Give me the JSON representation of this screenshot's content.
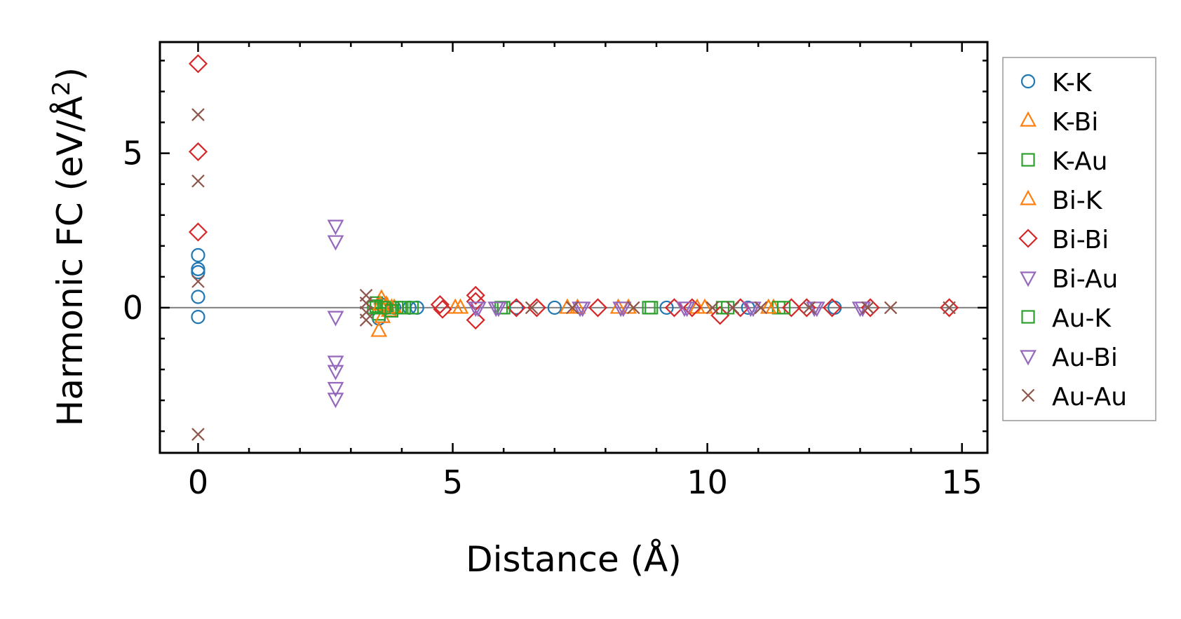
{
  "chart_data": {
    "type": "scatter",
    "xlabel": "Distance (Å)",
    "ylabel_main": "Harmonic FC (eV/Å",
    "ylabel_sup": "2",
    "ylabel_close": ")",
    "xlim": [
      -0.75,
      15.5
    ],
    "ylim": [
      -4.7,
      8.6
    ],
    "xticks": [
      0,
      5,
      10,
      15
    ],
    "xtick_labels": [
      "0",
      "5",
      "10",
      "15"
    ],
    "yticks": [
      0,
      5
    ],
    "ytick_labels": [
      "0",
      "5"
    ],
    "x_minor_step": 1,
    "y_minor_step": 1,
    "hline_y": 0,
    "legend_position": "outside-right",
    "series": [
      {
        "name": "K-K",
        "marker": "circle",
        "color": "#1f77b4",
        "points": [
          [
            0,
            1.7
          ],
          [
            0,
            1.25
          ],
          [
            0,
            1.15
          ],
          [
            0,
            0.35
          ],
          [
            0,
            -0.3
          ],
          [
            3.55,
            -0.35
          ],
          [
            3.6,
            0.1
          ],
          [
            3.7,
            0.0
          ],
          [
            3.85,
            0.0
          ],
          [
            4.15,
            0.0
          ],
          [
            4.3,
            0.0
          ],
          [
            6.25,
            0.0
          ],
          [
            7.0,
            0.0
          ],
          [
            9.2,
            0.0
          ],
          [
            10.8,
            0.0
          ],
          [
            12.5,
            0.0
          ]
        ]
      },
      {
        "name": "K-Bi",
        "marker": "triangle-up",
        "color": "#ff7f0e",
        "points": [
          [
            3.55,
            -0.75
          ],
          [
            3.6,
            0.3
          ],
          [
            3.7,
            0.1
          ],
          [
            3.75,
            -0.1
          ],
          [
            3.85,
            0.0
          ],
          [
            5.05,
            0.0
          ],
          [
            7.25,
            0.0
          ],
          [
            8.45,
            0.0
          ],
          [
            9.95,
            0.0
          ],
          [
            11.3,
            0.0
          ]
        ]
      },
      {
        "name": "K-Au",
        "marker": "square",
        "color": "#2ca02c",
        "points": [
          [
            3.45,
            0.0
          ],
          [
            3.5,
            0.15
          ],
          [
            3.55,
            -0.2
          ],
          [
            3.6,
            0.0
          ],
          [
            3.7,
            0.0
          ],
          [
            3.9,
            0.0
          ],
          [
            4.05,
            0.0
          ],
          [
            4.2,
            0.0
          ],
          [
            5.95,
            0.0
          ],
          [
            8.85,
            0.0
          ],
          [
            10.3,
            0.0
          ],
          [
            11.4,
            0.0
          ]
        ]
      },
      {
        "name": "Bi-K",
        "marker": "triangle-up",
        "color": "#ff7f0e",
        "points": [
          [
            3.58,
            0.1
          ],
          [
            3.62,
            -0.3
          ],
          [
            3.8,
            0.0
          ],
          [
            5.15,
            0.0
          ],
          [
            7.45,
            0.0
          ],
          [
            8.25,
            0.0
          ],
          [
            9.8,
            0.0
          ],
          [
            11.2,
            0.0
          ]
        ]
      },
      {
        "name": "Bi-Bi",
        "marker": "diamond",
        "color": "#d62728",
        "points": [
          [
            0,
            7.9
          ],
          [
            0,
            5.05
          ],
          [
            0,
            2.45
          ],
          [
            4.75,
            0.1
          ],
          [
            4.8,
            -0.05
          ],
          [
            5.45,
            0.4
          ],
          [
            5.45,
            0.2
          ],
          [
            5.45,
            -0.4
          ],
          [
            6.25,
            0.0
          ],
          [
            6.65,
            0.0
          ],
          [
            7.85,
            0.0
          ],
          [
            9.35,
            0.0
          ],
          [
            9.7,
            0.0
          ],
          [
            10.25,
            -0.25
          ],
          [
            10.65,
            0.0
          ],
          [
            11.65,
            0.0
          ],
          [
            11.95,
            0.0
          ],
          [
            12.45,
            0.0
          ],
          [
            13.2,
            0.0
          ],
          [
            14.75,
            0.0
          ]
        ]
      },
      {
        "name": "Bi-Au",
        "marker": "triangle-down",
        "color": "#9467bd",
        "points": [
          [
            2.7,
            2.65
          ],
          [
            2.7,
            2.15
          ],
          [
            2.7,
            -0.3
          ],
          [
            2.7,
            -1.75
          ],
          [
            2.7,
            -2.05
          ],
          [
            2.7,
            -2.6
          ],
          [
            2.7,
            -2.95
          ],
          [
            5.45,
            0.0
          ],
          [
            5.85,
            0.0
          ],
          [
            7.55,
            0.0
          ],
          [
            8.35,
            0.0
          ],
          [
            9.55,
            0.0
          ],
          [
            10.85,
            0.0
          ],
          [
            12.15,
            0.0
          ],
          [
            13.05,
            0.0
          ]
        ]
      },
      {
        "name": "Au-K",
        "marker": "square",
        "color": "#2ca02c",
        "points": [
          [
            3.5,
            0.05
          ],
          [
            3.65,
            0.0
          ],
          [
            3.8,
            -0.1
          ],
          [
            4.0,
            0.0
          ],
          [
            6.0,
            0.0
          ],
          [
            8.9,
            0.0
          ],
          [
            10.4,
            0.0
          ],
          [
            11.5,
            0.0
          ]
        ]
      },
      {
        "name": "Au-Bi",
        "marker": "triangle-down",
        "color": "#9467bd",
        "points": [
          [
            5.5,
            0.0
          ],
          [
            5.9,
            0.0
          ],
          [
            7.5,
            0.0
          ],
          [
            8.3,
            0.0
          ],
          [
            9.6,
            0.0
          ],
          [
            10.9,
            0.0
          ],
          [
            12.1,
            0.0
          ],
          [
            13.0,
            0.0
          ]
        ]
      },
      {
        "name": "Au-Au",
        "marker": "x",
        "color": "#8c564b",
        "points": [
          [
            0,
            6.25
          ],
          [
            0,
            4.1
          ],
          [
            0,
            0.85
          ],
          [
            0,
            -4.1
          ],
          [
            3.3,
            0.4
          ],
          [
            3.3,
            0.15
          ],
          [
            3.3,
            -0.15
          ],
          [
            3.3,
            -0.4
          ],
          [
            6.55,
            0.0
          ],
          [
            7.35,
            0.0
          ],
          [
            8.55,
            0.0
          ],
          [
            10.1,
            0.0
          ],
          [
            10.5,
            0.0
          ],
          [
            11.05,
            0.0
          ],
          [
            12.0,
            0.0
          ],
          [
            13.15,
            0.0
          ],
          [
            13.6,
            0.0
          ],
          [
            14.75,
            0.0
          ]
        ]
      }
    ]
  }
}
